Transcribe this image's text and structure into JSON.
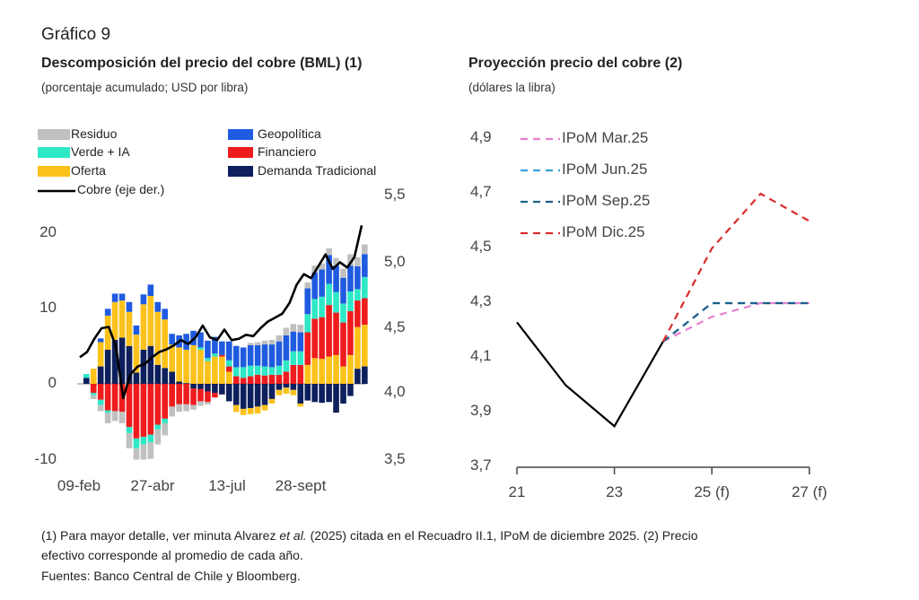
{
  "figure_label": "Gráfico 9",
  "footnotes": {
    "line1_a": "(1) Para mayor detalle, ver minuta Alvarez ",
    "line1_em": "et al.",
    "line1_b": " (2025) citada en el Recuadro II.1, IPoM de diciembre 2025. (2) Precio",
    "line2": "efectivo corresponde al promedio de cada año.",
    "line3": "Fuentes: Banco Central de Chile y Bloomberg."
  },
  "chart_data": [
    {
      "type": "bar",
      "stacked": true,
      "title": "Descomposición del precio del cobre (BML) (1)",
      "subtitle": "(porcentaje acumulado; USD por libra)",
      "x_tick_labels": [
        "09-feb",
        "27-abr",
        "13-jul",
        "28-sept"
      ],
      "y_ticks": [
        "20",
        "10",
        "0",
        "-10"
      ],
      "ylim": [
        -10,
        20
      ],
      "y2_ticks": [
        "5,5",
        "5,0",
        "4,5",
        "4,0",
        "3,5"
      ],
      "y2lim": [
        3.5,
        5.5
      ],
      "legend": [
        {
          "name": "Residuo",
          "color": "#c0c0c0"
        },
        {
          "name": "Geopolítica",
          "color": "#1f5be0"
        },
        {
          "name": "Verde + IA",
          "color": "#2ee8c6"
        },
        {
          "name": "Financiero",
          "color": "#ee1c1c"
        },
        {
          "name": "Oferta",
          "color": "#fcc21b"
        },
        {
          "name": "Demanda Tradicional",
          "color": "#0d1f5c"
        },
        {
          "name": "Cobre (eje der.)",
          "color": "#000000"
        }
      ],
      "series": [
        {
          "name": "Demanda Tradicional",
          "color": "#0d1f5c",
          "values": [
            0.8,
            0,
            2.3,
            4.5,
            5.8,
            6.1,
            5,
            1.5,
            4.5,
            5,
            2.5,
            2.1,
            1.6,
            0.3,
            0.1,
            -0.6,
            -0.7,
            -1,
            -1.2,
            -1.4,
            -2.3,
            -2.8,
            -3.3,
            -3.2,
            -3,
            -2.8,
            -2,
            -0.8,
            -0.5,
            -0.8,
            -2.6,
            -2.2,
            -2.4,
            -2.5,
            -2.4,
            -3.8,
            -2.6,
            -1.6,
            2,
            2.3
          ]
        },
        {
          "name": "Oferta",
          "color": "#fcc21b",
          "values": [
            0,
            2,
            3.2,
            4.5,
            5,
            4.9,
            4.5,
            5,
            6,
            6.6,
            7,
            6.4,
            3.6,
            4.5,
            4.4,
            5.1,
            4.5,
            3,
            3.6,
            3.6,
            1.6,
            -0.9,
            -0.8,
            -0.8,
            -0.9,
            -0.7,
            -0.6,
            -0.7,
            -0.8,
            -0.7,
            -0.4,
            2.5,
            3.4,
            3.3,
            3.6,
            3.8,
            2.3,
            3.8,
            5.5,
            5.5
          ]
        },
        {
          "name": "Financiero",
          "color": "#ee1c1c",
          "values": [
            0,
            -1.2,
            -2.1,
            -3.5,
            -3.6,
            -3.7,
            -5.7,
            -7.2,
            -7,
            -6.7,
            -5.4,
            -4.6,
            -3,
            -2.7,
            -2.7,
            -2.2,
            -1.6,
            -1.4,
            -0.6,
            0.2,
            0.7,
            1,
            0.8,
            1,
            1.2,
            1.1,
            1.2,
            1.2,
            1.6,
            2.5,
            2.5,
            4.3,
            5.2,
            5.5,
            6.8,
            5.6,
            5.8,
            5.8,
            3.5,
            3.5
          ]
        },
        {
          "name": "Verde + IA",
          "color": "#2ee8c6",
          "values": [
            0.5,
            -0.3,
            -0.7,
            -0.3,
            0,
            0,
            -0.8,
            -1.3,
            -1,
            -1,
            -0.6,
            -0.6,
            0,
            0,
            0,
            0,
            0.3,
            0.4,
            0.4,
            0,
            0.8,
            1.2,
            1.4,
            1.4,
            1.2,
            1.2,
            1,
            1.2,
            1.5,
            1.8,
            1.8,
            2.4,
            2.6,
            2.7,
            2.8,
            2.7,
            2.5,
            2.6,
            1.5,
            2.8
          ]
        },
        {
          "name": "Geopolítica",
          "color": "#1f5be0",
          "values": [
            0,
            0,
            0.5,
            0.9,
            1.1,
            0.9,
            1.3,
            1.2,
            1.3,
            1.5,
            1.3,
            1.4,
            1.4,
            1.6,
            2.1,
            1.9,
            2,
            2.3,
            2.2,
            1.8,
            2.5,
            2.8,
            2.6,
            2.7,
            2.7,
            2.9,
            3,
            3.2,
            3.3,
            2.6,
            2.5,
            3.4,
            3.5,
            3.6,
            3.8,
            3.5,
            3.4,
            3.4,
            3,
            3
          ]
        },
        {
          "name": "Residuo",
          "color": "#c0c0c0",
          "values": [
            0,
            -0.5,
            -0.8,
            -1.4,
            -1.3,
            -1.5,
            -2,
            -1.5,
            -2,
            -2.2,
            -2,
            -1.6,
            -1.3,
            -1,
            -0.9,
            -0.6,
            -0.6,
            -0.3,
            0,
            0,
            0,
            0,
            0,
            0.3,
            0.4,
            0.5,
            0.6,
            0.8,
            1,
            1,
            1,
            0.8,
            0.9,
            0.8,
            0.9,
            1,
            1.2,
            1.5,
            1.2,
            1.3
          ]
        }
      ],
      "line": {
        "name": "Cobre (eje der.)",
        "axis": "right",
        "values": [
          4.27,
          4.31,
          4.41,
          4.49,
          4.5,
          4.35,
          3.96,
          4.14,
          4.2,
          4.22,
          4.27,
          4.31,
          4.33,
          4.36,
          4.4,
          4.37,
          4.42,
          4.51,
          4.42,
          4.4,
          4.48,
          4.4,
          4.41,
          4.44,
          4.43,
          4.49,
          4.54,
          4.57,
          4.6,
          4.68,
          4.82,
          4.9,
          4.87,
          4.96,
          5.05,
          4.94,
          4.99,
          4.95,
          5.03,
          5.27
        ]
      }
    },
    {
      "type": "line",
      "title": "Proyección precio del cobre (2)",
      "subtitle": "(dólares la libra)",
      "x_ticks": [
        "21",
        "23",
        "25 (f)",
        "27 (f)"
      ],
      "xlim": [
        21,
        27
      ],
      "y_ticks": [
        "4,9",
        "4,7",
        "4,5",
        "4,3",
        "4,1",
        "3,9",
        "3,7"
      ],
      "ylim": [
        3.7,
        4.9
      ],
      "series": [
        {
          "name": "Efectivo",
          "color": "#000000",
          "dashed": false,
          "x": [
            21,
            22,
            23,
            24
          ],
          "y": [
            4.23,
            4.0,
            3.85,
            4.16
          ]
        },
        {
          "name": "IPoM Mar.25",
          "color": "#e67fd0",
          "dashed": true,
          "x": [
            24,
            25,
            26,
            27
          ],
          "y": [
            4.16,
            4.25,
            4.3,
            4.3
          ]
        },
        {
          "name": "IPoM Jun.25",
          "color": "#3ba0d8",
          "dashed": true,
          "x": [
            24,
            25,
            26,
            27
          ],
          "y": [
            4.16,
            4.3,
            4.3,
            4.3
          ]
        },
        {
          "name": "IPoM Sep.25",
          "color": "#1c5f8a",
          "dashed": true,
          "x": [
            24,
            25,
            26,
            27
          ],
          "y": [
            4.16,
            4.3,
            4.3,
            4.3
          ]
        },
        {
          "name": "IPoM Dic.25",
          "color": "#d92b2b",
          "dashed": true,
          "x": [
            24,
            25,
            26,
            27
          ],
          "y": [
            4.16,
            4.5,
            4.7,
            4.6
          ]
        }
      ]
    }
  ]
}
